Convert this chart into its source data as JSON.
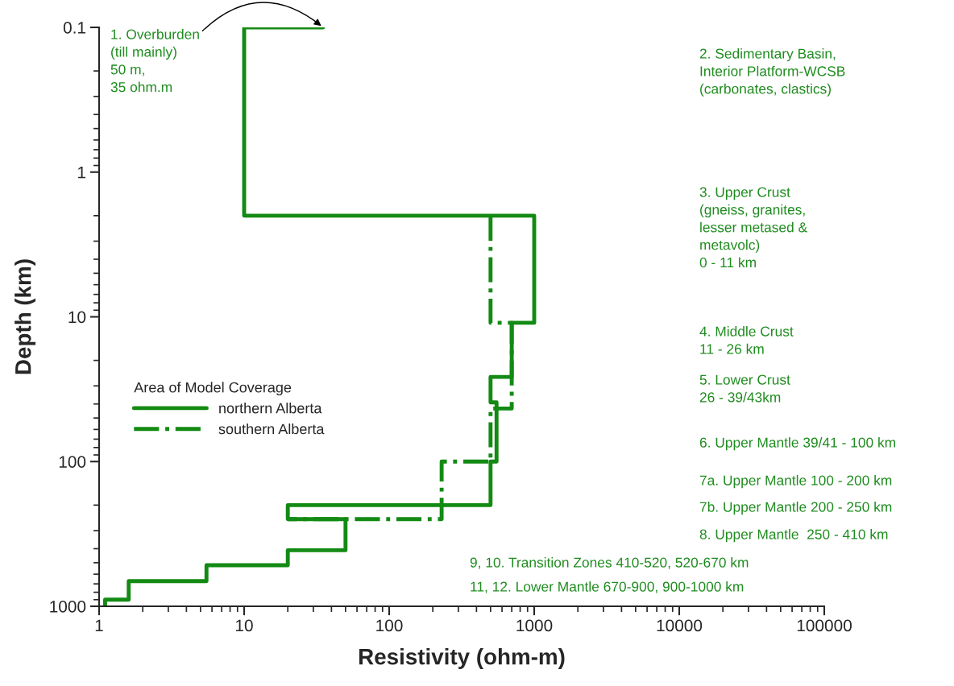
{
  "chart_data": {
    "type": "line",
    "xlabel": "Resistivity (ohm-m)",
    "ylabel": "Depth (km)",
    "legend_title": "Area of Model Coverage",
    "series": [
      {
        "name": "northern Alberta",
        "color": "#138a13",
        "line_style": "solid",
        "x": [
          35,
          10,
          10,
          1000,
          1000,
          700,
          700,
          500,
          500,
          550,
          550,
          500,
          500,
          20,
          20,
          50,
          50,
          20,
          20,
          5.5,
          5.5,
          1.6,
          1.6,
          1.1,
          1.1
        ],
        "values": [
          0.1,
          0.1,
          2,
          2,
          11,
          11,
          26,
          26,
          39,
          39,
          100,
          100,
          200,
          200,
          250,
          250,
          410,
          410,
          520,
          520,
          670,
          670,
          900,
          900,
          1000
        ]
      },
      {
        "name": "southern Alberta",
        "color": "#138a13",
        "line_style": "dashdot",
        "x": [
          500,
          500,
          700,
          700,
          500,
          500,
          230,
          230,
          20
        ],
        "values": [
          2,
          11,
          11,
          43,
          43,
          100,
          100,
          250,
          250
        ]
      }
    ],
    "xlim": [
      1,
      100000
    ],
    "xticks": [
      1,
      10,
      100,
      1000,
      10000,
      100000
    ],
    "ylim": [
      1000,
      0.1
    ],
    "yticks": [
      0.1,
      1,
      10,
      100,
      1000
    ],
    "log": "xy",
    "grid": false,
    "legend": "left",
    "annotations": [
      {
        "text": "1. Overburden\n(till mainly)\n50 m,\n35 ohm.m",
        "x": 35,
        "y": 0.1
      },
      "2. Sedimentary Basin,\nInterior Platform-WCSB\n(carbonates, clastics)",
      "3. Upper Crust\n(gneiss, granites,\nlesser metased &\nmetavolc)\n0 - 11 km",
      "4. Middle Crust\n11 - 26 km",
      "5. Lower Crust\n26 - 39/43km",
      "6. Upper Mantle 39/41 - 100 km",
      "7a. Upper Mantle 100 - 200 km",
      "7b. Upper Mantle 200 - 250 km",
      "8. Upper Mantle  250 - 410 km",
      "9, 10. Transition Zones 410-520, 520-670 km",
      "11, 12. Lower Mantle 670-900, 900-1000 km"
    ]
  }
}
